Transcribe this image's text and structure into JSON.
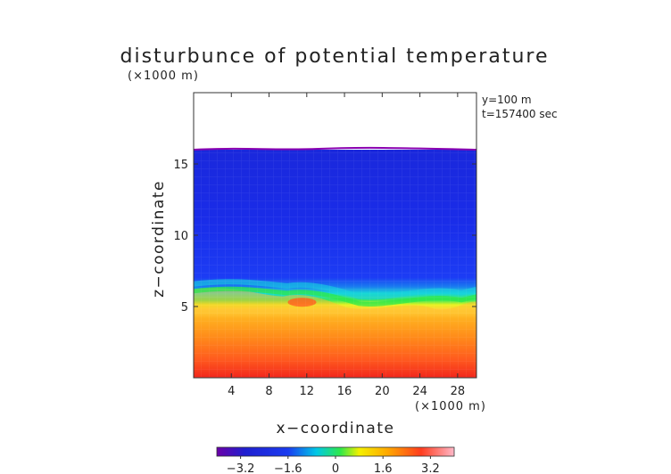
{
  "chart_data": {
    "type": "heatmap",
    "title": "disturbunce of potential temperature",
    "xlabel": "x−coordinate",
    "ylabel": "z−coordinate",
    "x_unit": "(×1000 m)",
    "y_unit": "(×1000 m)",
    "xlim": [
      0,
      30
    ],
    "ylim": [
      0,
      20
    ],
    "x_ticks": [
      4,
      8,
      12,
      16,
      20,
      24,
      28
    ],
    "y_ticks": [
      5,
      10,
      15
    ],
    "annotations": [
      "y=100 m",
      "t=157400 sec"
    ],
    "colorbar": {
      "range": [
        -4,
        4
      ],
      "ticks": [
        -3.2,
        -1.6,
        0,
        1.6,
        3.2
      ],
      "tick_labels": [
        "−3.2",
        "−1.6",
        "0",
        "1.6",
        "3.2"
      ]
    },
    "field": {
      "top_boundary_z": 16,
      "layers": [
        {
          "z_from": 0,
          "z_to": 1.5,
          "value": 3.4
        },
        {
          "z_from": 1.5,
          "z_to": 3.5,
          "value": 2.6
        },
        {
          "z_from": 3.5,
          "z_to": 5.0,
          "value": 1.8
        },
        {
          "z_from": 5.0,
          "z_to": 6.0,
          "value": 0.2
        },
        {
          "z_from": 6.0,
          "z_to": 7.0,
          "value": -1.4
        },
        {
          "z_from": 7.0,
          "z_to": 16.0,
          "value": -2.2
        }
      ]
    }
  }
}
